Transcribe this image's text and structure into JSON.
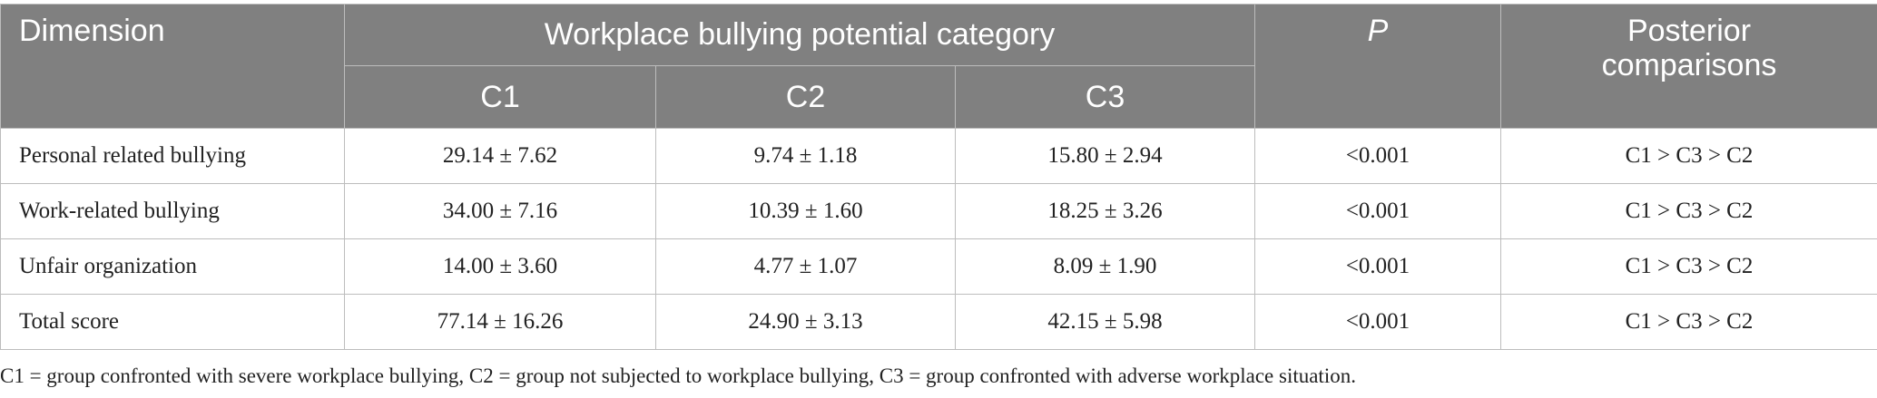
{
  "table": {
    "header": {
      "dimension": "Dimension",
      "group": "Workplace bullying potential category",
      "p": "P",
      "posterior_line1": "Posterior",
      "posterior_line2": "comparisons",
      "subcolumns": [
        "C1",
        "C2",
        "C3"
      ]
    },
    "rows": [
      {
        "dimension": "Personal related bullying",
        "c1": "29.14 ± 7.62",
        "c2": "9.74 ± 1.18",
        "c3": "15.80 ± 2.94",
        "p": "<0.001",
        "posterior": "C1 > C3 > C2"
      },
      {
        "dimension": "Work-related bullying",
        "c1": "34.00 ± 7.16",
        "c2": "10.39 ± 1.60",
        "c3": "18.25 ± 3.26",
        "p": "<0.001",
        "posterior": "C1 > C3 > C2"
      },
      {
        "dimension": "Unfair organization",
        "c1": "14.00 ± 3.60",
        "c2": "4.77 ± 1.07",
        "c3": "8.09 ± 1.90",
        "p": "<0.001",
        "posterior": "C1 > C3 > C2"
      },
      {
        "dimension": "Total score",
        "c1": "77.14 ± 16.26",
        "c2": "24.90 ± 3.13",
        "c3": "42.15 ± 5.98",
        "p": "<0.001",
        "posterior": "C1 > C3 > C2"
      }
    ]
  },
  "footnote": "C1 = group confronted with severe workplace bullying, C2 = group not subjected to workplace bullying, C3 = group confronted with adverse workplace situation.",
  "colors": {
    "header_bg": "#808080",
    "header_text": "#ffffff",
    "grid": "#bdbdbd"
  }
}
